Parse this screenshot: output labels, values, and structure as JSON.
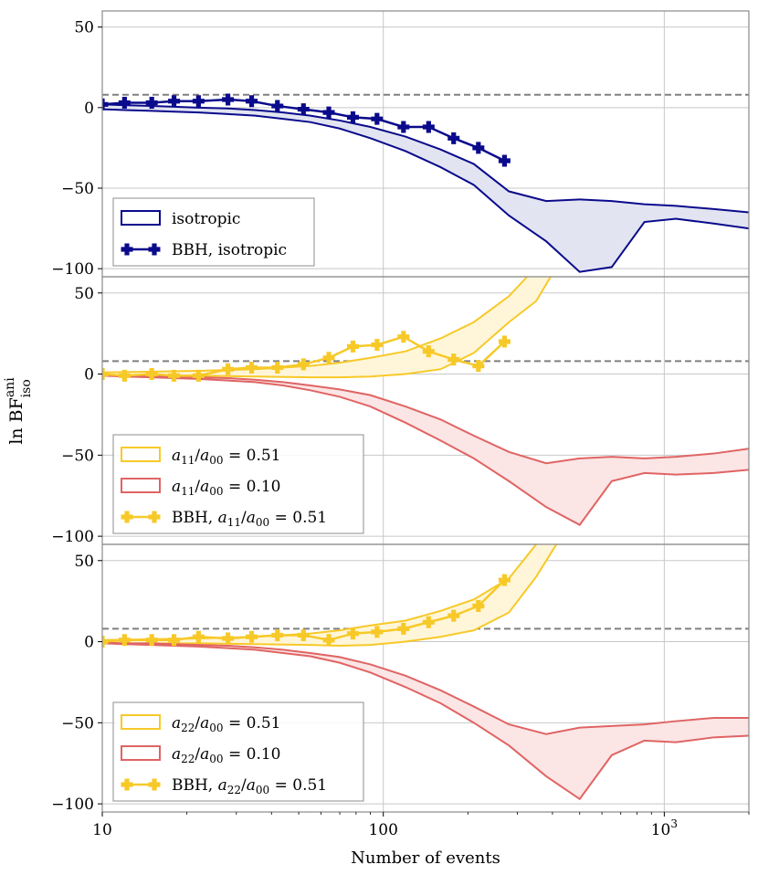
{
  "figure": {
    "ylabel": "ln BF",
    "ylabel_sup": "ani",
    "ylabel_sub": "iso",
    "xlabel": "Number of events"
  },
  "threshold": 8,
  "x_axis": {
    "scale": "log",
    "lim": [
      10,
      2000
    ],
    "ticks": [
      {
        "value": 10,
        "label": "10"
      },
      {
        "value": 100,
        "label": "100"
      },
      {
        "value": 1000,
        "label": "10",
        "sup": "3"
      }
    ]
  },
  "colors": {
    "navy": "#0a0a8c",
    "navy_fill": "#e2e4f1",
    "yellow": "#f7c928",
    "yellow_fill": "#fff6d9",
    "red": "#e06464",
    "red_fill": "#fbe5e5",
    "grid": "#c8c8c8",
    "dashed": "#808080"
  },
  "chart_data": [
    {
      "type": "line",
      "panel": "top",
      "ylim": [
        -105,
        60
      ],
      "yticks": [
        50,
        0,
        -50,
        -100
      ],
      "ytick_labels": [
        "50",
        "0",
        "−50",
        "−100"
      ],
      "bands": [
        {
          "name": "isotropic",
          "color": "navy",
          "x": [
            10,
            12,
            15,
            18,
            22,
            28,
            35,
            44,
            55,
            70,
            90,
            120,
            160,
            210,
            280,
            380,
            500,
            650,
            850,
            1100,
            1500,
            2000
          ],
          "upper": [
            2,
            1.5,
            1,
            0.5,
            0,
            -0.5,
            -1.5,
            -3,
            -5,
            -8,
            -12,
            -18,
            -26,
            -35,
            -52,
            -58,
            -57,
            -58,
            -60,
            -61,
            -63,
            -65
          ],
          "lower": [
            -1,
            -1.5,
            -2,
            -2.5,
            -3,
            -4,
            -5,
            -7,
            -9,
            -13,
            -19,
            -27,
            -37,
            -48,
            -67,
            -83,
            -102,
            -99,
            -71,
            -69,
            -72,
            -75
          ]
        }
      ],
      "markers": [
        {
          "name": "BBH, isotropic",
          "color": "navy",
          "x": [
            10,
            12,
            15,
            18,
            22,
            28,
            34,
            42,
            52,
            64,
            78,
            95,
            118,
            145,
            178,
            218,
            270
          ],
          "y": [
            2,
            3,
            3,
            4,
            4,
            5,
            4,
            1,
            -1,
            -3,
            -6,
            -7,
            -12,
            -12,
            -19,
            -25,
            -33
          ]
        }
      ],
      "legend": {
        "position": "lower-left",
        "items": [
          {
            "kind": "patch",
            "color": "navy",
            "label": "isotropic"
          },
          {
            "kind": "marker",
            "color": "navy",
            "label": "BBH, isotropic"
          }
        ]
      }
    },
    {
      "type": "line",
      "panel": "middle",
      "ylim": [
        -105,
        60
      ],
      "yticks": [
        50,
        0,
        -50,
        -100
      ],
      "ytick_labels": [
        "50",
        "0",
        "−50",
        "−100"
      ],
      "bands": [
        {
          "name": "a11/a00 = 0.51",
          "color": "yellow",
          "x": [
            10,
            15,
            22,
            35,
            55,
            70,
            90,
            120,
            160,
            210,
            280,
            350,
            420
          ],
          "upper": [
            1,
            1.5,
            2,
            3,
            5,
            7,
            10,
            14,
            22,
            32,
            48,
            66,
            90
          ],
          "lower": [
            -1,
            -1,
            -1,
            -1.5,
            -2,
            -2,
            -1.5,
            0,
            3,
            13,
            32,
            45,
            68
          ]
        },
        {
          "name": "a11/a00 = 0.10",
          "color": "red",
          "x": [
            10,
            12,
            15,
            18,
            22,
            28,
            35,
            44,
            55,
            70,
            90,
            120,
            160,
            210,
            280,
            380,
            500,
            650,
            850,
            1100,
            1500,
            2000
          ],
          "upper": [
            -0.5,
            -1,
            -1,
            -1.5,
            -2,
            -2.5,
            -3.5,
            -5,
            -7,
            -9.5,
            -13,
            -20,
            -28,
            -38,
            -48,
            -55,
            -52,
            -51,
            -52,
            -51,
            -49,
            -46
          ],
          "lower": [
            -1,
            -1.5,
            -2,
            -2.5,
            -3,
            -4,
            -5,
            -7,
            -10,
            -14,
            -20,
            -30,
            -41,
            -52,
            -66,
            -82,
            -93,
            -66,
            -61,
            -62,
            -61,
            -59
          ]
        }
      ],
      "markers": [
        {
          "name": "BBH, a11/a00 = 0.51",
          "color": "yellow",
          "x": [
            10,
            12,
            15,
            18,
            22,
            28,
            34,
            42,
            52,
            64,
            78,
            95,
            118,
            145,
            178,
            218,
            270
          ],
          "y": [
            0,
            -1,
            0,
            -1,
            -1,
            3,
            4,
            4,
            6,
            10,
            17,
            18,
            23,
            14,
            9,
            5,
            20
          ]
        }
      ],
      "legend": {
        "position": "lower-left",
        "items": [
          {
            "kind": "patch",
            "color": "yellow",
            "label": "= 0.51",
            "ratio": "11"
          },
          {
            "kind": "patch",
            "color": "red",
            "label": "= 0.10",
            "ratio": "11"
          },
          {
            "kind": "marker",
            "color": "yellow",
            "label": "= 0.51",
            "prefix": "BBH, ",
            "ratio": "11"
          }
        ]
      }
    },
    {
      "type": "line",
      "panel": "bottom",
      "ylim": [
        -105,
        60
      ],
      "yticks": [
        50,
        0,
        -50,
        -100
      ],
      "ytick_labels": [
        "50",
        "0",
        "−50",
        "−100"
      ],
      "bands": [
        {
          "name": "a22/a00 = 0.51",
          "color": "yellow",
          "x": [
            10,
            15,
            22,
            35,
            55,
            70,
            90,
            120,
            160,
            210,
            280,
            350,
            420
          ],
          "upper": [
            1,
            1.5,
            2,
            3,
            5,
            7,
            10,
            13,
            19,
            26,
            39,
            60,
            80
          ],
          "lower": [
            -1,
            -1,
            -1,
            -1.5,
            -2,
            -2.5,
            -2,
            0,
            3,
            7,
            18,
            40,
            62
          ]
        },
        {
          "name": "a22/a00 = 0.10",
          "color": "red",
          "x": [
            10,
            12,
            15,
            18,
            22,
            28,
            35,
            44,
            55,
            70,
            90,
            120,
            160,
            210,
            280,
            380,
            500,
            650,
            850,
            1100,
            1500,
            2000
          ],
          "upper": [
            -0.5,
            -1,
            -1,
            -1.5,
            -2,
            -2.5,
            -3.5,
            -5,
            -7,
            -9.5,
            -14,
            -21,
            -30,
            -40,
            -51,
            -57,
            -53,
            -52,
            -51,
            -49,
            -47,
            -47
          ],
          "lower": [
            -1,
            -1.5,
            -2,
            -2.5,
            -3,
            -4,
            -5,
            -7,
            -9,
            -13,
            -19,
            -28,
            -38,
            -50,
            -64,
            -83,
            -97,
            -70,
            -61,
            -62,
            -59,
            -58
          ]
        }
      ],
      "markers": [
        {
          "name": "BBH, a22/a00 = 0.51",
          "color": "yellow",
          "x": [
            10,
            12,
            15,
            18,
            22,
            28,
            34,
            42,
            52,
            64,
            78,
            95,
            118,
            145,
            178,
            218,
            270
          ],
          "y": [
            0,
            1,
            1,
            1,
            3,
            2,
            3,
            4,
            4,
            1,
            5,
            6,
            8,
            12,
            16,
            22,
            38
          ]
        }
      ],
      "legend": {
        "position": "lower-left",
        "items": [
          {
            "kind": "patch",
            "color": "yellow",
            "label": "= 0.51",
            "ratio": "22"
          },
          {
            "kind": "patch",
            "color": "red",
            "label": "= 0.10",
            "ratio": "22"
          },
          {
            "kind": "marker",
            "color": "yellow",
            "label": "= 0.51",
            "prefix": "BBH, ",
            "ratio": "22"
          }
        ]
      }
    }
  ]
}
